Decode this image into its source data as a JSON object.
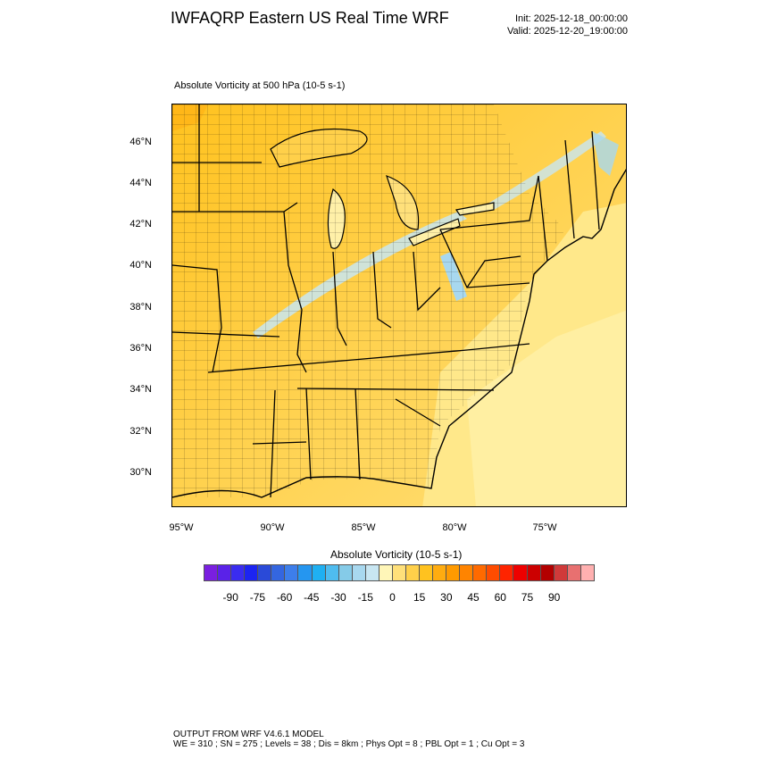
{
  "header": {
    "title": "IWFAQRP Eastern US Real Time WRF",
    "init": "Init: 2025-12-18_00:00:00",
    "valid": "Valid: 2025-12-20_19:00:00"
  },
  "panel": {
    "subtitle": "Absolute Vorticity at 500 hPa   (10-5 s-1)",
    "lat_labels": [
      "46°N",
      "44°N",
      "42°N",
      "40°N",
      "38°N",
      "36°N",
      "34°N",
      "32°N",
      "30°N"
    ],
    "lon_labels": [
      "95°W",
      "90°W",
      "85°W",
      "80°W",
      "75°W"
    ]
  },
  "colorbar": {
    "title": "Absolute Vorticity  (10-5 s-1)",
    "labels": [
      "-90",
      "-75",
      "-60",
      "-45",
      "-30",
      "-15",
      "0",
      "15",
      "30",
      "45",
      "60",
      "75",
      "90"
    ],
    "colors": [
      "#7a1fe0",
      "#5a22e8",
      "#3a2cf0",
      "#1c24f2",
      "#2a4ad8",
      "#3466e0",
      "#3d7eea",
      "#2596f0",
      "#1fb0f2",
      "#4fbcef",
      "#85cbe8",
      "#a8d8ef",
      "#c8e6f2",
      "#fff6b8",
      "#ffe07a",
      "#ffd04a",
      "#ffc21f",
      "#ffac10",
      "#ff9a00",
      "#ff8400",
      "#ff6a00",
      "#ff4c00",
      "#ff2400",
      "#ee0000",
      "#cc0000",
      "#b30000",
      "#d03a3a",
      "#e87070",
      "#ffb0b0"
    ]
  },
  "footer": {
    "line1": "OUTPUT FROM WRF V4.6.1 MODEL",
    "line2": "WE = 310 ; SN = 275 ; Levels = 38 ; Dis = 8km ; Phys Opt = 8 ; PBL Opt = 1 ; Cu Opt = 3"
  }
}
